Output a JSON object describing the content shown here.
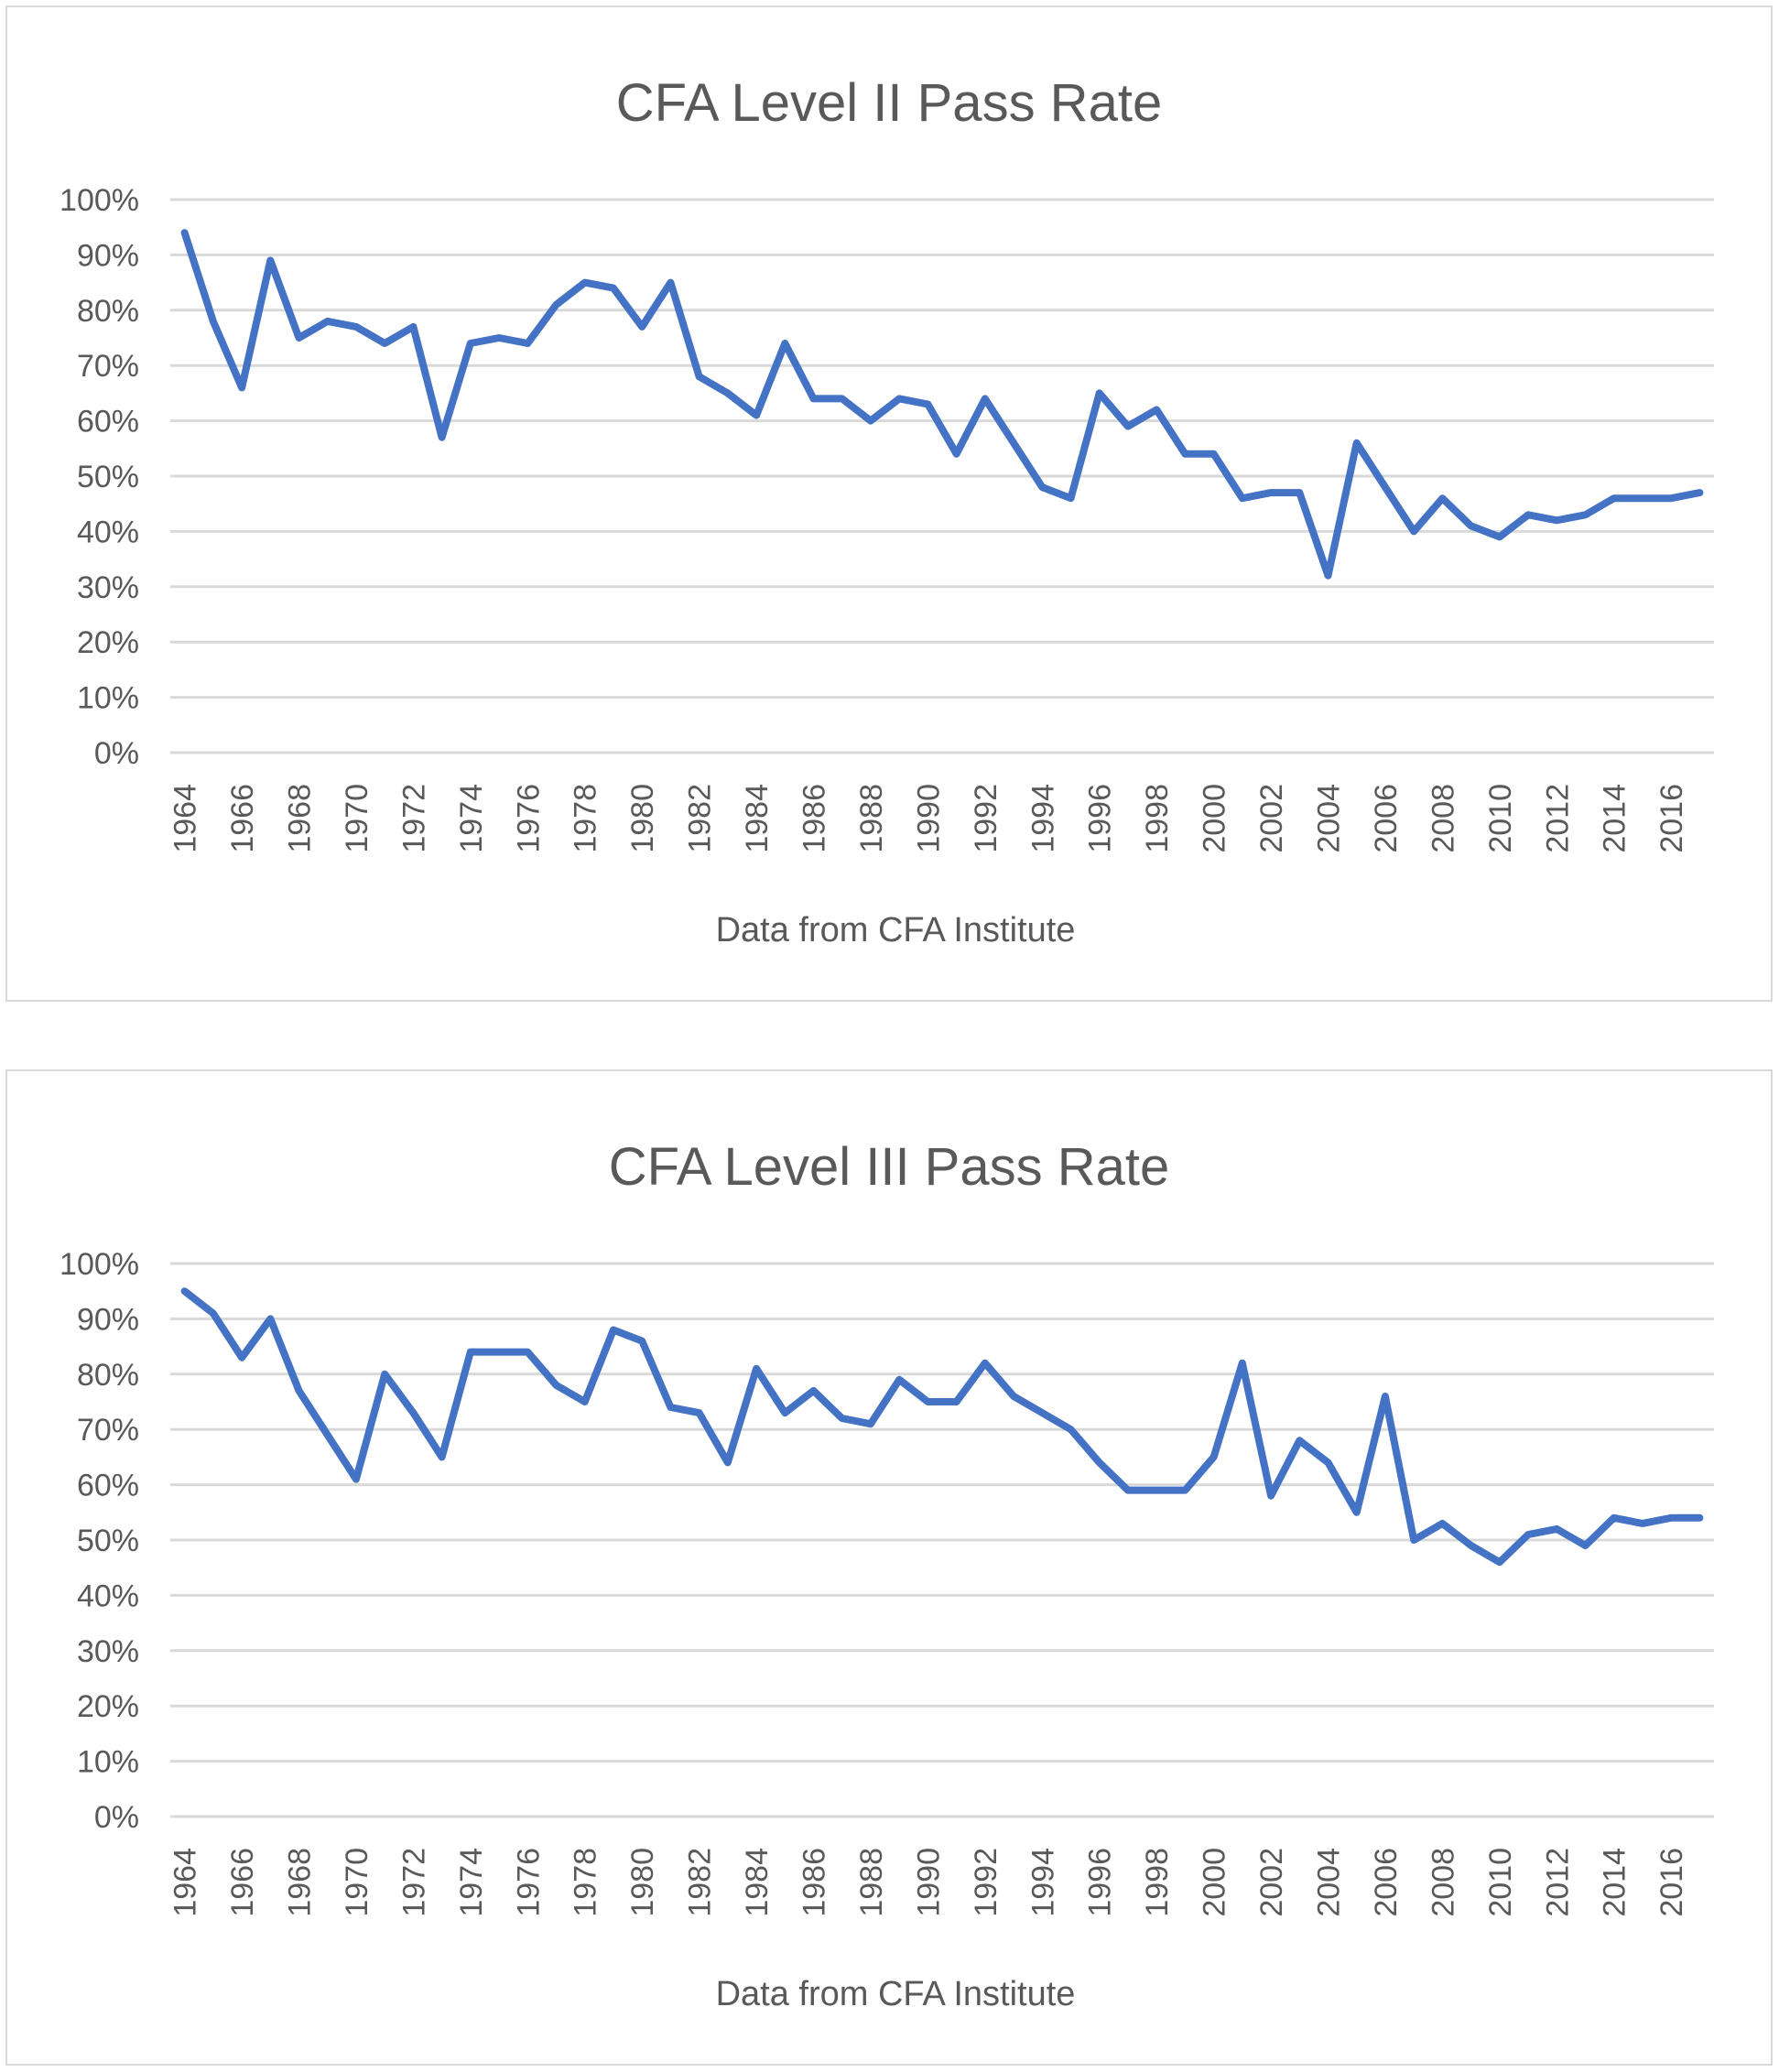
{
  "colors": {
    "series": "#4472C4",
    "grid": "#D9D9D9",
    "text": "#595959",
    "border": "#D9D9D9"
  },
  "chart_data": [
    {
      "type": "line",
      "title": "CFA Level II Pass Rate",
      "xlabel": "Data from CFA Institute",
      "ylabel": "",
      "ylim": [
        0,
        100
      ],
      "yticks": [
        "0%",
        "10%",
        "20%",
        "30%",
        "40%",
        "50%",
        "60%",
        "70%",
        "80%",
        "90%",
        "100%"
      ],
      "x": [
        1964,
        1965,
        1966,
        1967,
        1968,
        1969,
        1970,
        1971,
        1972,
        1973,
        1974,
        1975,
        1976,
        1977,
        1978,
        1979,
        1980,
        1981,
        1982,
        1983,
        1984,
        1985,
        1986,
        1987,
        1988,
        1989,
        1990,
        1991,
        1992,
        1993,
        1994,
        1995,
        1996,
        1997,
        1998,
        1999,
        2000,
        2001,
        2002,
        2003,
        2004,
        2005,
        2006,
        2007,
        2008,
        2009,
        2010,
        2011,
        2012,
        2013,
        2014,
        2015,
        2016,
        2017
      ],
      "xtick_labels": [
        "1964",
        "1966",
        "1968",
        "1970",
        "1972",
        "1974",
        "1976",
        "1978",
        "1980",
        "1982",
        "1984",
        "1986",
        "1988",
        "1990",
        "1992",
        "1994",
        "1996",
        "1998",
        "2000",
        "2002",
        "2004",
        "2006",
        "2008",
        "2010",
        "2012",
        "2014",
        "2016"
      ],
      "series": [
        {
          "values": [
            94,
            78,
            66,
            89,
            75,
            78,
            77,
            74,
            77,
            57,
            74,
            75,
            74,
            81,
            85,
            84,
            77,
            85,
            68,
            65,
            61,
            74,
            64,
            64,
            60,
            64,
            63,
            54,
            64,
            56,
            48,
            46,
            65,
            59,
            62,
            54,
            54,
            46,
            47,
            47,
            32,
            56,
            48,
            40,
            46,
            41,
            39,
            43,
            42,
            43,
            46,
            46,
            46,
            47
          ]
        }
      ]
    },
    {
      "type": "line",
      "title": "CFA Level III Pass Rate",
      "xlabel": "Data from CFA Institute",
      "ylabel": "",
      "ylim": [
        0,
        100
      ],
      "yticks": [
        "0%",
        "10%",
        "20%",
        "30%",
        "40%",
        "50%",
        "60%",
        "70%",
        "80%",
        "90%",
        "100%"
      ],
      "x": [
        1964,
        1965,
        1966,
        1967,
        1968,
        1969,
        1970,
        1971,
        1972,
        1973,
        1974,
        1975,
        1976,
        1977,
        1978,
        1979,
        1980,
        1981,
        1982,
        1983,
        1984,
        1985,
        1986,
        1987,
        1988,
        1989,
        1990,
        1991,
        1992,
        1993,
        1994,
        1995,
        1996,
        1997,
        1998,
        1999,
        2000,
        2001,
        2002,
        2003,
        2004,
        2005,
        2006,
        2007,
        2008,
        2009,
        2010,
        2011,
        2012,
        2013,
        2014,
        2015,
        2016,
        2017
      ],
      "xtick_labels": [
        "1964",
        "1966",
        "1968",
        "1970",
        "1972",
        "1974",
        "1976",
        "1978",
        "1980",
        "1982",
        "1984",
        "1986",
        "1988",
        "1990",
        "1992",
        "1994",
        "1996",
        "1998",
        "2000",
        "2002",
        "2004",
        "2006",
        "2008",
        "2010",
        "2012",
        "2014",
        "2016"
      ],
      "series": [
        {
          "values": [
            95,
            91,
            83,
            90,
            77,
            69,
            61,
            80,
            73,
            65,
            84,
            84,
            84,
            78,
            75,
            88,
            86,
            74,
            73,
            64,
            81,
            73,
            77,
            72,
            71,
            79,
            75,
            75,
            82,
            76,
            73,
            70,
            64,
            59,
            59,
            59,
            65,
            82,
            58,
            68,
            64,
            55,
            76,
            50,
            53,
            49,
            46,
            51,
            52,
            49,
            54,
            53,
            54,
            54
          ]
        }
      ]
    }
  ]
}
